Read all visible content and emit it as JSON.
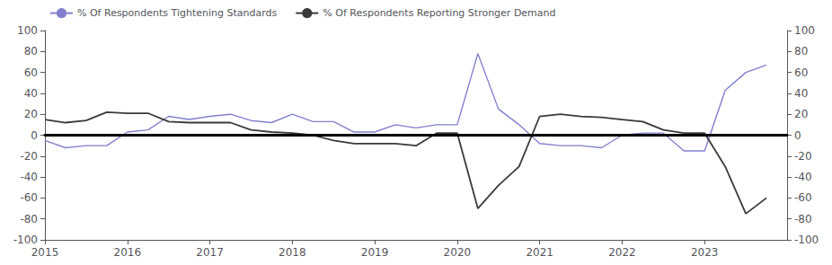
{
  "chart_data": {
    "type": "line",
    "x": [
      2015.0,
      2015.25,
      2015.5,
      2015.75,
      2016.0,
      2016.25,
      2016.5,
      2016.75,
      2017.0,
      2017.25,
      2017.5,
      2017.75,
      2018.0,
      2018.25,
      2018.5,
      2018.75,
      2019.0,
      2019.25,
      2019.5,
      2019.75,
      2020.0,
      2020.25,
      2020.5,
      2020.75,
      2021.0,
      2021.25,
      2021.5,
      2021.75,
      2022.0,
      2022.25,
      2022.5,
      2022.75,
      2023.0,
      2023.25,
      2023.5,
      2023.75
    ],
    "series": [
      {
        "name": "% Of Respondents Tightening Standards",
        "color": "#8080cc",
        "values": [
          -5,
          -12,
          -10,
          -10,
          3,
          5,
          18,
          15,
          18,
          20,
          14,
          12,
          20,
          13,
          13,
          3,
          3,
          10,
          7,
          10,
          10,
          78,
          25,
          10,
          -8,
          -10,
          -10,
          -12,
          0,
          2,
          2,
          -15,
          -15,
          43,
          60,
          67
        ]
      },
      {
        "name": "% Of Respondents Reporting Stronger Demand",
        "color": "#3a3a3a",
        "values": [
          15,
          12,
          14,
          22,
          21,
          21,
          13,
          12,
          12,
          12,
          5,
          3,
          2,
          0,
          -5,
          -8,
          -8,
          -8,
          -10,
          2,
          2,
          -70,
          -48,
          -30,
          18,
          20,
          18,
          17,
          15,
          13,
          5,
          2,
          2,
          -30,
          -75,
          -60
        ]
      }
    ],
    "xlim": [
      2015,
      2024.0
    ],
    "xticks": [
      2015,
      2016,
      2017,
      2018,
      2019,
      2020,
      2021,
      2022,
      2023
    ],
    "ylim": [
      -100,
      100
    ],
    "yticks": [
      -100,
      -80,
      -60,
      -40,
      -20,
      0,
      20,
      40,
      60,
      80,
      100
    ],
    "y2lim": [
      -100,
      100
    ],
    "y2ticks": [
      -100,
      -80,
      -60,
      -40,
      -20,
      0,
      20,
      40,
      60,
      80,
      100
    ],
    "grid": false,
    "legend": "upper left"
  }
}
